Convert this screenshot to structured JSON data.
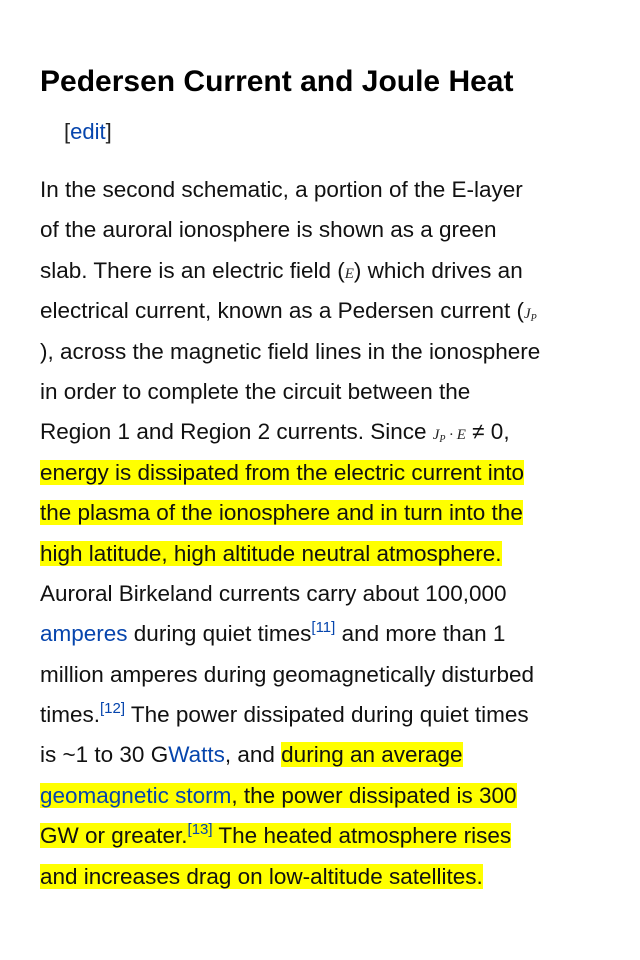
{
  "section": {
    "title": "Pedersen Current and Joule Heat",
    "edit": {
      "open": "[",
      "label": "edit",
      "close": "]"
    }
  },
  "paragraph": {
    "l1": "In the second schematic, a portion of the E-layer",
    "l2": "of the auroral ionosphere is shown as a green",
    "l3a": "slab. There is an electric field (",
    "math_e": "E",
    "l3b": ") which drives an",
    "l4a": "electrical current, known as a Pedersen current (",
    "math_j": "J",
    "math_p": "P",
    "l5": "), across the magnetic field lines in the ionosphere",
    "l6": "in order to complete the circuit between the",
    "l7a": "Region 1 and Region 2 currents. Since ",
    "math_j2": "J",
    "math_p2": "P",
    "math_dot": " · ",
    "math_e2": "E",
    "l7b": " ≠ 0,",
    "hl1_l1": "energy is dissipated from the electric current into",
    "hl1_l2": "the plasma of the ionosphere and in turn into the",
    "hl1_l3": "high latitude, high altitude neutral atmosphere.",
    "l11": "Auroral Birkeland currents carry about 100,000",
    "link_amperes": "amperes",
    "l12a": " during quiet times",
    "ref11": "[11]",
    "l12b": " and more than 1",
    "l13": "million amperes during geomagnetically disturbed",
    "l14a": "times.",
    "ref12": "[12]",
    "l14b": " The power dissipated during quiet times",
    "l15a": "is ~1 to 30 G",
    "link_watts": "Watts",
    "l15b": ", and ",
    "hl2_l15": "during an average",
    "link_storm": "geomagnetic storm",
    "hl2_l16": ", the power dissipated is 300",
    "hl2_l17a": "GW or greater.",
    "ref13": "[13]",
    "hl2_l17b": " The heated atmosphere rises",
    "hl2_l18": "and increases drag on low-altitude satellites."
  },
  "colors": {
    "highlight": "#ffff00",
    "link": "#0645ad",
    "text": "#111111"
  }
}
